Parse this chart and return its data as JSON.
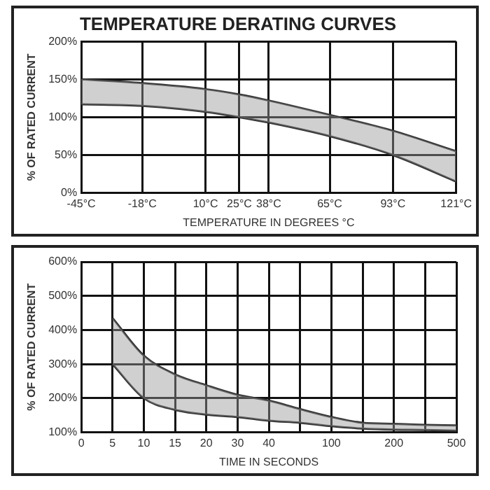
{
  "chart_data": [
    {
      "type": "line",
      "title": "TEMPERATURE DERATING CURVES",
      "xlabel": "TEMPERATURE IN DEGREES °C",
      "ylabel": "% OF RATED CURRENT",
      "x": [
        -45,
        -18,
        10,
        25,
        38,
        65,
        93,
        121
      ],
      "series": [
        {
          "color": "#333333",
          "values": [
            150,
            145,
            137,
            130,
            122,
            103,
            82,
            55
          ],
          "lower": [
            117,
            115,
            107,
            100,
            93,
            75,
            50,
            15
          ],
          "upper": [
            150,
            145,
            137,
            130,
            122,
            103,
            82,
            55
          ]
        },
        {
          "color": "#333333",
          "values": [
            117,
            115,
            107,
            100,
            93,
            75,
            50,
            15
          ]
        }
      ],
      "xlim": [
        -45,
        121
      ],
      "xticks": [
        {
          "value": -45,
          "label": "-45°C"
        },
        {
          "value": -18,
          "label": "-18°C"
        },
        {
          "value": 10,
          "label": "10°C"
        },
        {
          "value": 25,
          "label": "25°C"
        },
        {
          "value": 38,
          "label": "38°C"
        },
        {
          "value": 65,
          "label": "65°C"
        },
        {
          "value": 93,
          "label": "93°C"
        },
        {
          "value": 121,
          "label": "121°C"
        }
      ],
      "ylim": [
        0,
        200
      ],
      "yticks": [
        {
          "value": 0,
          "label": "0%"
        },
        {
          "value": 50,
          "label": "50%"
        },
        {
          "value": 100,
          "label": "100%"
        },
        {
          "value": 150,
          "label": "150%"
        },
        {
          "value": 200,
          "label": "200%"
        }
      ],
      "grid": true,
      "marker": "none"
    },
    {
      "type": "line",
      "xlabel": "TIME IN SECONDS",
      "ylabel": "% OF RATED CURRENT",
      "categories": [
        "0",
        "5",
        "10",
        "15",
        "20",
        "30",
        "40",
        null,
        "100",
        null,
        "200",
        null,
        "500"
      ],
      "series": [
        {
          "color": "#333333",
          "values": [
            null,
            435,
            325,
            270,
            238,
            210,
            193,
            168,
            145,
            128,
            125,
            122,
            120
          ],
          "lower": [
            null,
            300,
            200,
            166,
            152,
            145,
            134,
            128,
            118,
            111,
            108,
            107,
            105
          ],
          "upper": [
            null,
            435,
            325,
            270,
            238,
            210,
            193,
            168,
            145,
            128,
            125,
            122,
            120
          ]
        },
        {
          "color": "#333333",
          "values": [
            null,
            300,
            200,
            166,
            152,
            145,
            134,
            128,
            118,
            111,
            108,
            107,
            105
          ]
        }
      ],
      "ylim": [
        100,
        600
      ],
      "yticks": [
        {
          "value": 100,
          "label": "100%"
        },
        {
          "value": 200,
          "label": "200%"
        },
        {
          "value": 300,
          "label": "300%"
        },
        {
          "value": 400,
          "label": "400%"
        },
        {
          "value": 500,
          "label": "500%"
        },
        {
          "value": 600,
          "label": "600%"
        }
      ],
      "grid": true,
      "marker": "none"
    }
  ]
}
